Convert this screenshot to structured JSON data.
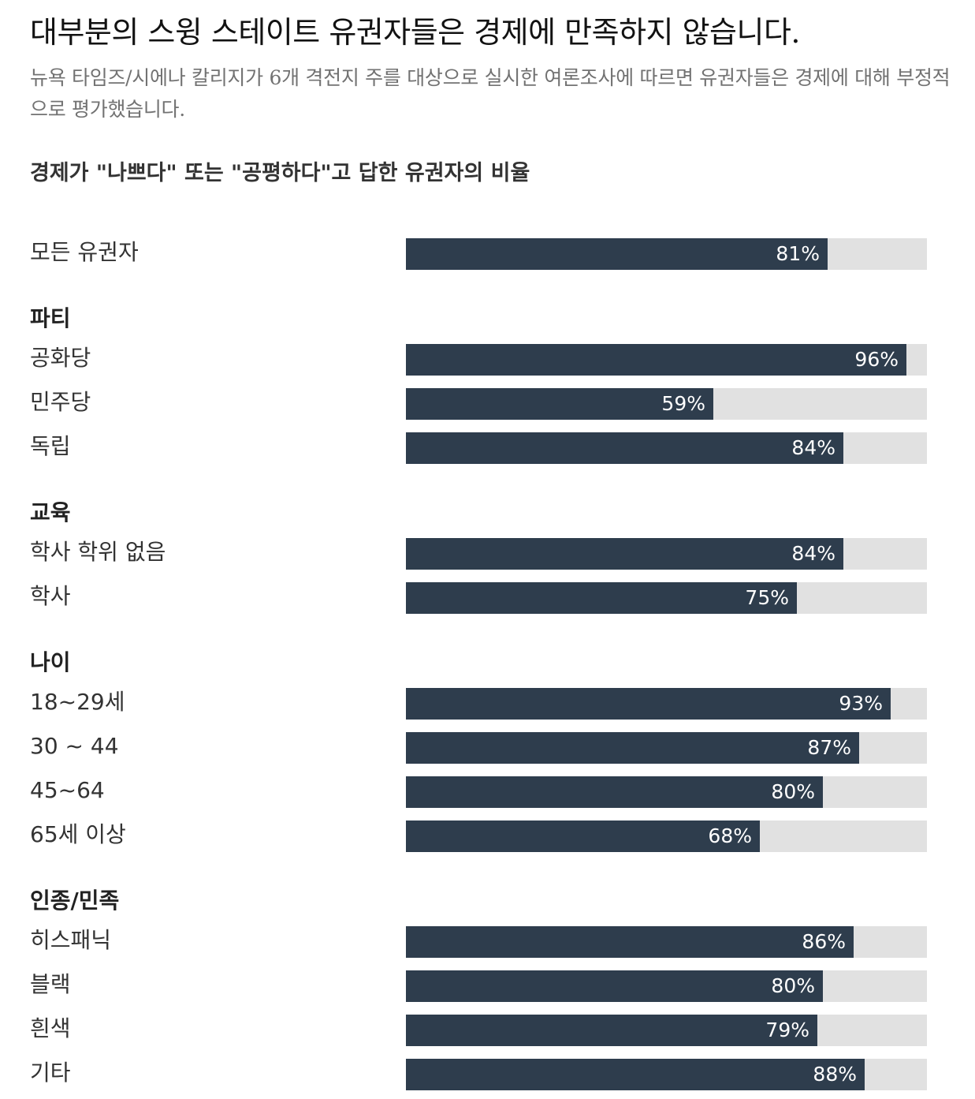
{
  "header": {
    "title": "대부분의 스윙 스테이트 유권자들은 경제에 만족하지 않습니다.",
    "subtitle": "뉴욕 타임즈/시에나 칼리지가 6개 격전지 주를 대상으로 실시한 여론조사에 따르면 유권자들은 경제에 대해 부정적으로 평가했습니다."
  },
  "colors": {
    "bar": "#2e3d4d",
    "track": "#e1e1e1",
    "value_text": "#ffffff"
  },
  "chart_data": {
    "type": "bar",
    "orientation": "horizontal",
    "title": "경제가 \"나쁘다\" 또는 \"공평하다\"고 답한 유권자의 비율",
    "xlim": [
      0,
      100
    ],
    "unit": "%",
    "groups": [
      {
        "label": "",
        "rows": [
          {
            "label": "모든 유권자",
            "value": 81,
            "display": "81%"
          }
        ]
      },
      {
        "label": "파티",
        "rows": [
          {
            "label": "공화당",
            "value": 96,
            "display": "96%"
          },
          {
            "label": "민주당",
            "value": 59,
            "display": "59%"
          },
          {
            "label": "독립",
            "value": 84,
            "display": "84%"
          }
        ]
      },
      {
        "label": "교육",
        "rows": [
          {
            "label": "학사 학위 없음",
            "value": 84,
            "display": "84%"
          },
          {
            "label": "학사",
            "value": 75,
            "display": "75%"
          }
        ]
      },
      {
        "label": "나이",
        "rows": [
          {
            "label": "18~29세",
            "value": 93,
            "display": "93%"
          },
          {
            "label": "30 ~ 44",
            "value": 87,
            "display": "87%"
          },
          {
            "label": "45~64",
            "value": 80,
            "display": "80%"
          },
          {
            "label": "65세 이상",
            "value": 68,
            "display": "68%"
          }
        ]
      },
      {
        "label": "인종/민족",
        "rows": [
          {
            "label": "히스패닉",
            "value": 86,
            "display": "86%"
          },
          {
            "label": "블랙",
            "value": 80,
            "display": "80%"
          },
          {
            "label": "흰색",
            "value": 79,
            "display": "79%"
          },
          {
            "label": "기타",
            "value": 88,
            "display": "88%"
          }
        ]
      }
    ]
  }
}
